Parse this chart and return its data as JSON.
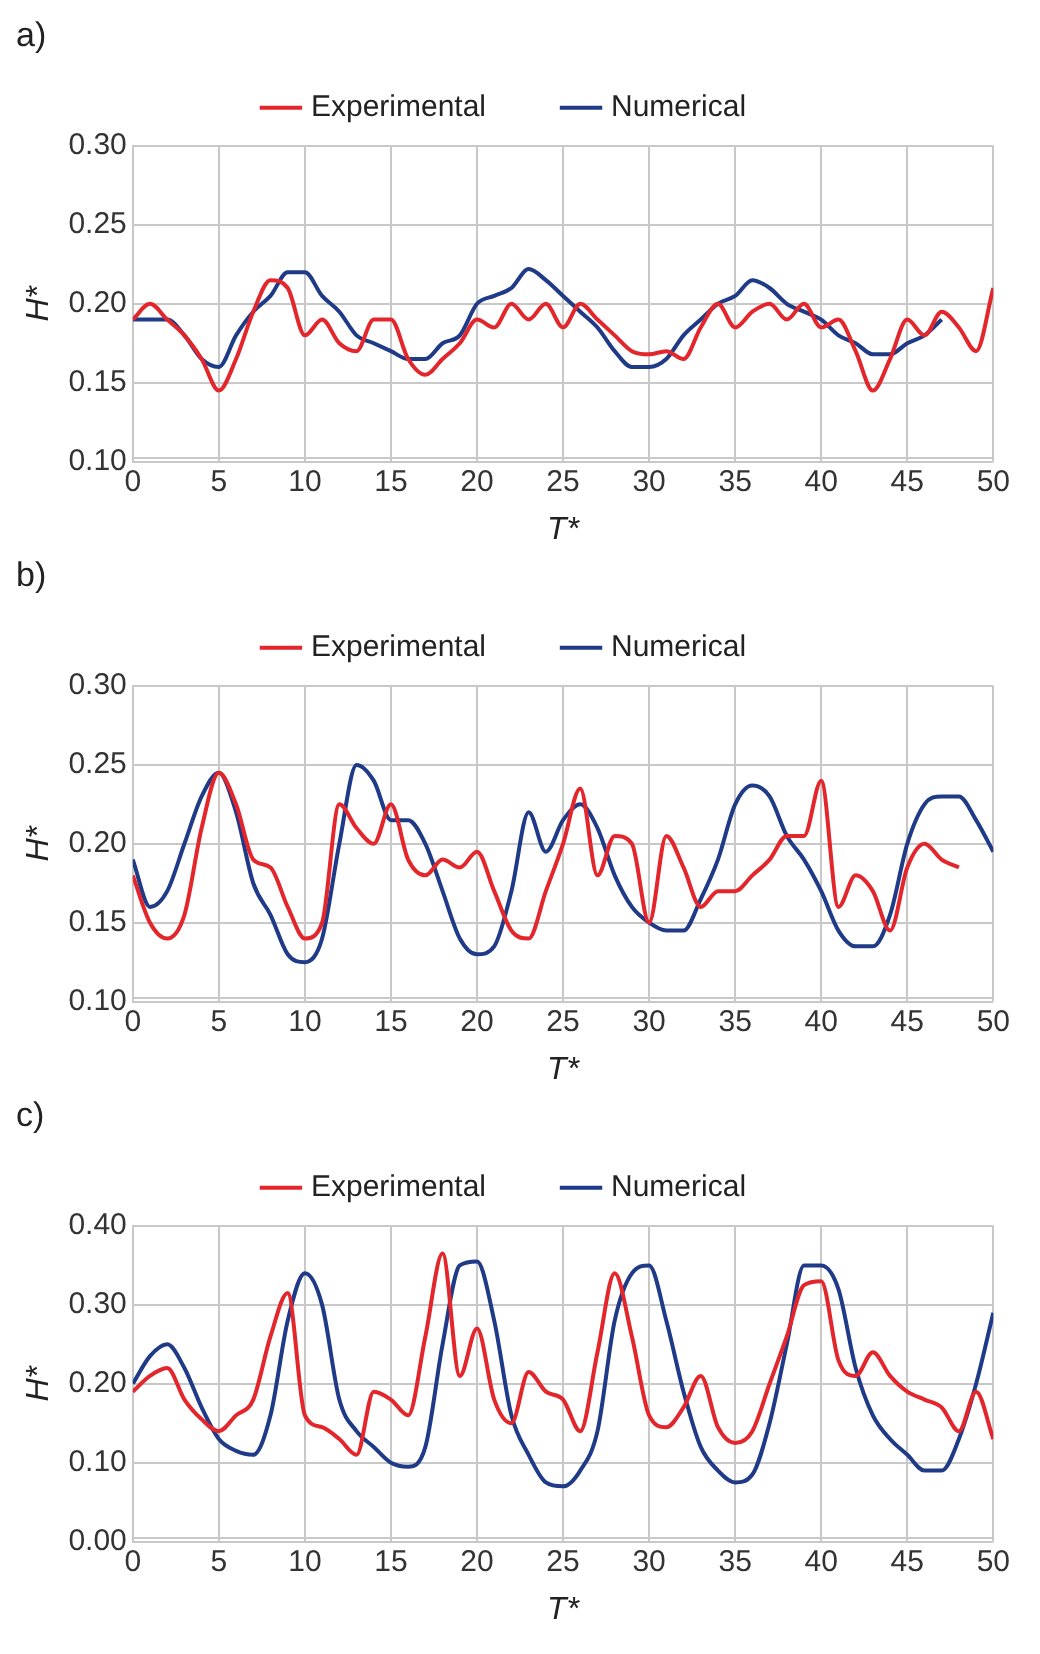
{
  "chart_data": [
    {
      "type": "line",
      "title": "a)",
      "xlabel": "T*",
      "ylabel": "H*",
      "x": [
        0,
        1,
        2,
        3,
        4,
        5,
        6,
        7,
        8,
        9,
        10,
        11,
        12,
        13,
        14,
        15,
        16,
        17,
        18,
        19,
        20,
        21,
        22,
        23,
        24,
        25,
        26,
        27,
        28,
        29,
        30,
        31,
        32,
        33,
        34,
        35,
        36,
        37,
        38,
        39,
        40,
        41,
        42,
        43,
        44,
        45,
        46,
        47,
        48,
        49,
        50
      ],
      "xlim": [
        0,
        50
      ],
      "xticks": [
        0,
        5,
        10,
        15,
        20,
        25,
        30,
        35,
        40,
        45,
        50
      ],
      "ylim": [
        0.1,
        0.3
      ],
      "yticks": [
        {
          "value": 0.1,
          "label": "0.10"
        },
        {
          "value": 0.15,
          "label": "0.15"
        },
        {
          "value": 0.2,
          "label": "0.20"
        },
        {
          "value": 0.25,
          "label": "0.25"
        },
        {
          "value": 0.3,
          "label": "0.30"
        }
      ],
      "grid": true,
      "legend": "top",
      "series": [
        {
          "name": "Experimental",
          "color": "#e3262b",
          "values": [
            0.19,
            0.2,
            0.19,
            0.18,
            0.165,
            0.145,
            0.165,
            0.195,
            0.215,
            0.21,
            0.18,
            0.19,
            0.175,
            0.17,
            0.19,
            0.19,
            0.165,
            0.155,
            0.165,
            0.175,
            0.19,
            0.185,
            0.2,
            0.19,
            0.2,
            0.185,
            0.2,
            0.19,
            0.18,
            0.17,
            0.168,
            0.17,
            0.165,
            0.185,
            0.2,
            0.185,
            0.195,
            0.2,
            0.19,
            0.2,
            0.185,
            0.19,
            0.17,
            0.145,
            0.165,
            0.19,
            0.18,
            0.195,
            0.185,
            0.17,
            0.21
          ]
        },
        {
          "name": "Numerical",
          "color": "#1f3a87",
          "values": [
            0.19,
            0.19,
            0.19,
            0.18,
            0.165,
            0.16,
            0.18,
            0.195,
            0.205,
            0.22,
            0.22,
            0.205,
            0.195,
            0.18,
            0.175,
            0.17,
            0.165,
            0.165,
            0.175,
            0.18,
            0.2,
            0.205,
            0.21,
            0.222,
            0.215,
            0.205,
            0.195,
            0.185,
            0.17,
            0.16,
            0.16,
            0.165,
            0.18,
            0.19,
            0.2,
            0.205,
            0.215,
            0.21,
            0.2,
            0.195,
            0.19,
            0.18,
            0.175,
            0.168,
            0.168,
            0.175,
            0.18,
            0.19,
            null,
            null,
            null
          ]
        }
      ]
    },
    {
      "type": "line",
      "title": "b)",
      "xlabel": "T*",
      "ylabel": "H*",
      "x": [
        0,
        1,
        2,
        3,
        4,
        5,
        6,
        7,
        8,
        9,
        10,
        11,
        12,
        13,
        14,
        15,
        16,
        17,
        18,
        19,
        20,
        21,
        22,
        23,
        24,
        25,
        26,
        27,
        28,
        29,
        30,
        31,
        32,
        33,
        34,
        35,
        36,
        37,
        38,
        39,
        40,
        41,
        42,
        43,
        44,
        45,
        46,
        47,
        48,
        49,
        50
      ],
      "xlim": [
        0,
        50
      ],
      "xticks": [
        0,
        5,
        10,
        15,
        20,
        25,
        30,
        35,
        40,
        45,
        50
      ],
      "ylim": [
        0.1,
        0.3
      ],
      "yticks": [
        {
          "value": 0.1,
          "label": "0.10"
        },
        {
          "value": 0.15,
          "label": "0.15"
        },
        {
          "value": 0.2,
          "label": "0.20"
        },
        {
          "value": 0.25,
          "label": "0.25"
        },
        {
          "value": 0.3,
          "label": "0.30"
        }
      ],
      "grid": true,
      "legend": "top",
      "series": [
        {
          "name": "Experimental",
          "color": "#e3262b",
          "values": [
            0.18,
            0.15,
            0.14,
            0.155,
            0.21,
            0.245,
            0.225,
            0.19,
            0.185,
            0.16,
            0.14,
            0.15,
            0.225,
            0.21,
            0.2,
            0.225,
            0.19,
            0.18,
            0.19,
            0.185,
            0.195,
            0.17,
            0.145,
            0.14,
            0.17,
            0.2,
            0.235,
            0.18,
            0.205,
            0.2,
            0.15,
            0.205,
            0.185,
            0.16,
            0.17,
            0.17,
            0.18,
            0.19,
            0.205,
            0.205,
            0.24,
            0.16,
            0.18,
            0.17,
            0.145,
            0.185,
            0.2,
            0.19,
            0.185,
            null,
            null
          ]
        },
        {
          "name": "Numerical",
          "color": "#1f3a87",
          "values": [
            0.19,
            0.16,
            0.17,
            0.2,
            0.23,
            0.245,
            0.22,
            0.175,
            0.155,
            0.13,
            0.125,
            0.14,
            0.2,
            0.25,
            0.24,
            0.215,
            0.215,
            0.2,
            0.17,
            0.14,
            0.13,
            0.135,
            0.17,
            0.22,
            0.195,
            0.215,
            0.225,
            0.21,
            0.18,
            0.16,
            0.15,
            0.145,
            0.145,
            0.165,
            0.19,
            0.225,
            0.237,
            0.23,
            0.205,
            0.19,
            0.17,
            0.145,
            0.135,
            0.135,
            0.155,
            0.2,
            0.225,
            0.23,
            0.23,
            0.215,
            0.195
          ]
        }
      ]
    },
    {
      "type": "line",
      "title": "c)",
      "xlabel": "T*",
      "ylabel": "H*",
      "x": [
        0,
        1,
        2,
        3,
        4,
        5,
        6,
        7,
        8,
        9,
        10,
        11,
        12,
        13,
        14,
        15,
        16,
        17,
        18,
        19,
        20,
        21,
        22,
        23,
        24,
        25,
        26,
        27,
        28,
        29,
        30,
        31,
        32,
        33,
        34,
        35,
        36,
        37,
        38,
        39,
        40,
        41,
        42,
        43,
        44,
        45,
        46,
        47,
        48,
        49,
        50
      ],
      "xlim": [
        0,
        50
      ],
      "xticks": [
        0,
        5,
        10,
        15,
        20,
        25,
        30,
        35,
        40,
        45,
        50
      ],
      "ylim": [
        0,
        0.4
      ],
      "yticks": [
        {
          "value": 0,
          "label": "0.00"
        },
        {
          "value": 0.1,
          "label": "0.10"
        },
        {
          "value": 0.2,
          "label": "0.20"
        },
        {
          "value": 0.3,
          "label": "0.30"
        },
        {
          "value": 0.4,
          "label": "0.40"
        }
      ],
      "grid": true,
      "legend": "top",
      "series": [
        {
          "name": "Experimental",
          "color": "#e3262b",
          "values": [
            0.19,
            0.21,
            0.22,
            0.18,
            0.155,
            0.14,
            0.16,
            0.18,
            0.26,
            0.315,
            0.16,
            0.145,
            0.13,
            0.11,
            0.19,
            0.18,
            0.16,
            0.26,
            0.365,
            0.21,
            0.27,
            0.18,
            0.15,
            0.215,
            0.19,
            0.18,
            0.14,
            0.24,
            0.34,
            0.26,
            0.16,
            0.145,
            0.17,
            0.21,
            0.145,
            0.125,
            0.14,
            0.2,
            0.26,
            0.325,
            0.33,
            0.23,
            0.21,
            0.24,
            0.21,
            0.19,
            0.18,
            0.17,
            0.14,
            0.19,
            0.13
          ]
        },
        {
          "name": "Numerical",
          "color": "#1f3a87",
          "values": [
            0.2,
            0.235,
            0.25,
            0.22,
            0.17,
            0.13,
            0.115,
            0.11,
            0.16,
            0.28,
            0.34,
            0.3,
            0.18,
            0.14,
            0.12,
            0.1,
            0.095,
            0.12,
            0.25,
            0.35,
            0.355,
            0.28,
            0.16,
            0.11,
            0.075,
            0.07,
            0.09,
            0.14,
            0.28,
            0.34,
            0.35,
            0.28,
            0.19,
            0.12,
            0.09,
            0.075,
            0.085,
            0.15,
            0.25,
            0.35,
            0.35,
            0.32,
            0.22,
            0.16,
            0.13,
            0.11,
            0.09,
            0.09,
            0.13,
            0.2,
            0.29
          ]
        }
      ]
    }
  ]
}
